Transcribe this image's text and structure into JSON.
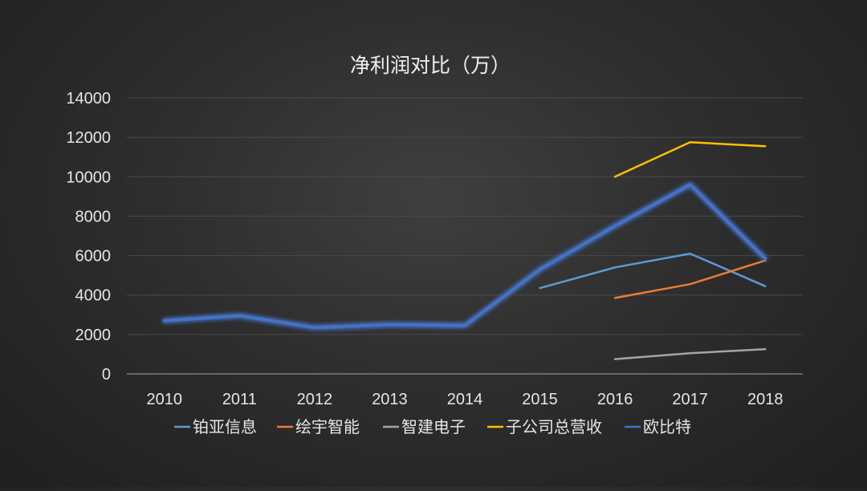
{
  "chart_data": {
    "type": "line",
    "title": "净利润对比（万）",
    "xlabel": "",
    "ylabel": "",
    "categories": [
      "2010",
      "2011",
      "2012",
      "2013",
      "2014",
      "2015",
      "2016",
      "2017",
      "2018"
    ],
    "ylim": [
      0,
      14000
    ],
    "yticks": [
      0,
      2000,
      4000,
      6000,
      8000,
      10000,
      12000,
      14000
    ],
    "grid": true,
    "legend_position": "bottom",
    "series": [
      {
        "name": "铂亚信息",
        "color": "#5b9bd5",
        "values": [
          null,
          null,
          null,
          null,
          null,
          4350,
          5400,
          6100,
          4450
        ]
      },
      {
        "name": "绘宇智能",
        "color": "#ed7d31",
        "values": [
          null,
          null,
          null,
          null,
          null,
          null,
          3850,
          4550,
          5750
        ]
      },
      {
        "name": "智建电子",
        "color": "#a5a5a5",
        "values": [
          null,
          null,
          null,
          null,
          null,
          null,
          750,
          1050,
          1250
        ]
      },
      {
        "name": "子公司总营收",
        "color": "#ffc000",
        "values": [
          null,
          null,
          null,
          null,
          null,
          null,
          10000,
          11750,
          11550
        ]
      },
      {
        "name": "欧比特",
        "color": "#4472c4",
        "glow": true,
        "values": [
          2700,
          2950,
          2350,
          2500,
          2450,
          5300,
          7500,
          9600,
          5850
        ]
      }
    ]
  }
}
